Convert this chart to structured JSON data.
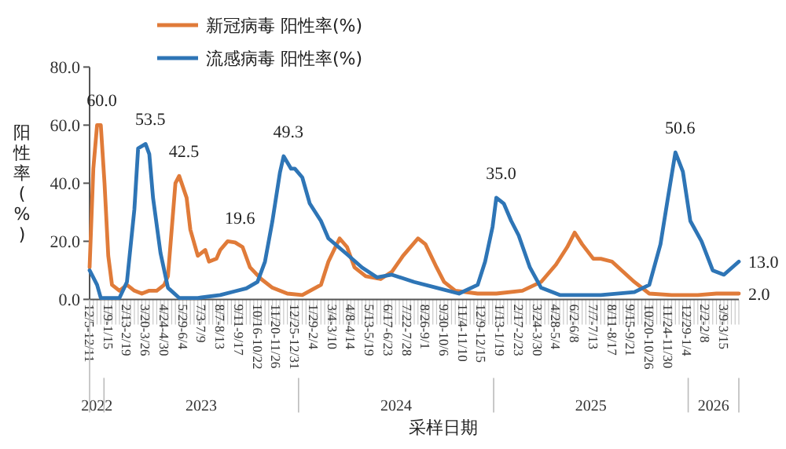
{
  "chart_data": {
    "type": "line",
    "xlabel": "采样日期",
    "ylabel": "阳性率(%)",
    "legend": "top",
    "marker": "none",
    "xlim": [
      "2022-12-05",
      "2026-04-06"
    ],
    "ylim": [
      0,
      80
    ],
    "yticks": [
      {
        "value": 0,
        "label": "0.0"
      },
      {
        "value": 20,
        "label": "20.0"
      },
      {
        "value": 40,
        "label": "40.0"
      },
      {
        "value": 60,
        "label": "60.0"
      },
      {
        "value": 80,
        "label": "80.0"
      }
    ],
    "xticks": [
      {
        "value": "2022-12-05",
        "label": "12/5-12/11"
      },
      {
        "value": "2023-01-09",
        "label": "1/9-1/15"
      },
      {
        "value": "2023-02-13",
        "label": "2/13-2/19"
      },
      {
        "value": "2023-03-20",
        "label": "3/20-3/26"
      },
      {
        "value": "2023-04-24",
        "label": "4/24-4/30"
      },
      {
        "value": "2023-05-29",
        "label": "5/29-6/4"
      },
      {
        "value": "2023-07-03",
        "label": "7/3-7/9"
      },
      {
        "value": "2023-08-07",
        "label": "8/7-8/13"
      },
      {
        "value": "2023-09-11",
        "label": "9/11-9/17"
      },
      {
        "value": "2023-10-16",
        "label": "10/16-10/22"
      },
      {
        "value": "2023-11-20",
        "label": "11/20-11/26"
      },
      {
        "value": "2023-12-25",
        "label": "12/25-12/31"
      },
      {
        "value": "2024-01-29",
        "label": "1/29-2/4"
      },
      {
        "value": "2024-03-04",
        "label": "3/4-3/10"
      },
      {
        "value": "2024-04-08",
        "label": "4/8-4/14"
      },
      {
        "value": "2024-05-13",
        "label": "5/13-5/19"
      },
      {
        "value": "2024-06-17",
        "label": "6/17-6/23"
      },
      {
        "value": "2024-07-22",
        "label": "7/22-7/28"
      },
      {
        "value": "2024-08-26",
        "label": "8/26-9/1"
      },
      {
        "value": "2024-09-30",
        "label": "9/30-10/6"
      },
      {
        "value": "2024-11-04",
        "label": "11/4-11/10"
      },
      {
        "value": "2024-12-09",
        "label": "12/9-12/15"
      },
      {
        "value": "2025-01-13",
        "label": "1/13-1/19"
      },
      {
        "value": "2025-02-17",
        "label": "2/17-2/23"
      },
      {
        "value": "2025-03-24",
        "label": "3/24-3/30"
      },
      {
        "value": "2025-04-28",
        "label": "4/28-5/4"
      },
      {
        "value": "2025-06-02",
        "label": "6/2-6/8"
      },
      {
        "value": "2025-07-07",
        "label": "7/7-7/13"
      },
      {
        "value": "2025-08-11",
        "label": "8/11-8/17"
      },
      {
        "value": "2025-09-15",
        "label": "9/15-9/21"
      },
      {
        "value": "2025-10-20",
        "label": "10/20-10/26"
      },
      {
        "value": "2025-11-24",
        "label": "11/24-11/30"
      },
      {
        "value": "2025-12-29",
        "label": "12/29-1/4"
      },
      {
        "value": "2026-02-02",
        "label": "2/2-2/8"
      },
      {
        "value": "2026-03-09",
        "label": "3/9-3/15"
      }
    ],
    "series": [
      {
        "name": "新冠病毒 阳性率(%)",
        "color": "#e07b39",
        "x": [
          "2022-12-05",
          "2022-12-12",
          "2022-12-19",
          "2022-12-26",
          "2023-01-02",
          "2023-01-09",
          "2023-01-16",
          "2023-01-30",
          "2023-02-13",
          "2023-02-27",
          "2023-03-13",
          "2023-03-27",
          "2023-04-10",
          "2023-04-24",
          "2023-05-01",
          "2023-05-15",
          "2023-05-22",
          "2023-06-05",
          "2023-06-12",
          "2023-06-26",
          "2023-07-10",
          "2023-07-17",
          "2023-07-31",
          "2023-08-07",
          "2023-08-21",
          "2023-09-04",
          "2023-09-18",
          "2023-10-02",
          "2023-10-23",
          "2023-11-13",
          "2023-12-11",
          "2024-01-08",
          "2024-02-12",
          "2024-02-26",
          "2024-03-18",
          "2024-04-01",
          "2024-04-15",
          "2024-05-06",
          "2024-06-03",
          "2024-06-24",
          "2024-07-15",
          "2024-08-12",
          "2024-08-26",
          "2024-09-16",
          "2024-09-30",
          "2024-10-21",
          "2024-12-02",
          "2025-01-06",
          "2025-02-24",
          "2025-03-31",
          "2025-04-28",
          "2025-05-19",
          "2025-06-02",
          "2025-06-16",
          "2025-07-07",
          "2025-07-21",
          "2025-08-11",
          "2025-09-01",
          "2025-09-22",
          "2025-10-20",
          "2025-12-01",
          "2026-01-19",
          "2026-02-23",
          "2026-04-06"
        ],
        "values": [
          11,
          45,
          60,
          60,
          40,
          15,
          5,
          3,
          5,
          3,
          2,
          3,
          3,
          5,
          8,
          40,
          42.5,
          35,
          24,
          15,
          17,
          13,
          14,
          17,
          20,
          19.6,
          18,
          11,
          7,
          4,
          2,
          1.5,
          5,
          13,
          21,
          18,
          11,
          8,
          7,
          9.5,
          15,
          21,
          19,
          11,
          6,
          3,
          2,
          2,
          3,
          6,
          12,
          18,
          23,
          19,
          14,
          14,
          13,
          9.5,
          6,
          2,
          1.5,
          1.5,
          2,
          2
        ]
      },
      {
        "name": "流感病毒 阳性率(%)",
        "color": "#2e75b6",
        "x": [
          "2022-12-05",
          "2022-12-19",
          "2022-12-26",
          "2023-01-30",
          "2023-02-13",
          "2023-02-27",
          "2023-03-06",
          "2023-03-20",
          "2023-03-27",
          "2023-04-03",
          "2023-04-17",
          "2023-05-01",
          "2023-05-22",
          "2023-06-26",
          "2023-08-07",
          "2023-09-04",
          "2023-09-25",
          "2023-10-16",
          "2023-10-30",
          "2023-11-13",
          "2023-11-27",
          "2023-12-04",
          "2023-12-18",
          "2023-12-25",
          "2024-01-08",
          "2024-01-22",
          "2024-02-12",
          "2024-02-26",
          "2024-04-01",
          "2024-04-29",
          "2024-05-27",
          "2024-06-24",
          "2024-08-05",
          "2024-09-16",
          "2024-10-28",
          "2024-12-02",
          "2024-12-16",
          "2024-12-30",
          "2025-01-06",
          "2025-01-20",
          "2025-02-03",
          "2025-02-17",
          "2025-03-10",
          "2025-03-31",
          "2025-05-05",
          "2025-07-21",
          "2025-09-22",
          "2025-10-20",
          "2025-11-10",
          "2025-11-24",
          "2025-12-08",
          "2025-12-22",
          "2026-01-05",
          "2026-01-26",
          "2026-02-16",
          "2026-03-09",
          "2026-04-06"
        ],
        "values": [
          10,
          5,
          0.5,
          0.5,
          6,
          31,
          52,
          53.5,
          50,
          35,
          16,
          4,
          0.5,
          0.5,
          1.5,
          2.8,
          3.8,
          6,
          13,
          27,
          43.6,
          49.3,
          45,
          45,
          42,
          33,
          27,
          21,
          15.5,
          11,
          7.6,
          8.5,
          6,
          4,
          2,
          5,
          13,
          25,
          35,
          33,
          27,
          22,
          11,
          4,
          1.5,
          1.5,
          2.5,
          5,
          19,
          35,
          50.6,
          44,
          27,
          20,
          10,
          8.5,
          13
        ]
      }
    ],
    "annotations": [
      {
        "text": "60.0",
        "x": "2022-12-19",
        "y": 60
      },
      {
        "text": "53.5",
        "x": "2023-03-20",
        "y": 53.5
      },
      {
        "text": "42.5",
        "x": "2023-05-22",
        "y": 42.5
      },
      {
        "text": "19.6",
        "x": "2023-09-04",
        "y": 19.6
      },
      {
        "text": "49.3",
        "x": "2023-12-04",
        "y": 49.3
      },
      {
        "text": "35.0",
        "x": "2025-01-06",
        "y": 35
      },
      {
        "text": "50.6",
        "x": "2025-12-08",
        "y": 50.6
      },
      {
        "text": "13.0",
        "x": "2026-04-06",
        "y": 13
      },
      {
        "text": "2.0",
        "x": "2026-04-06",
        "y": 2
      },
      "2022",
      "2023",
      "2024",
      "2025",
      "2026"
    ]
  }
}
